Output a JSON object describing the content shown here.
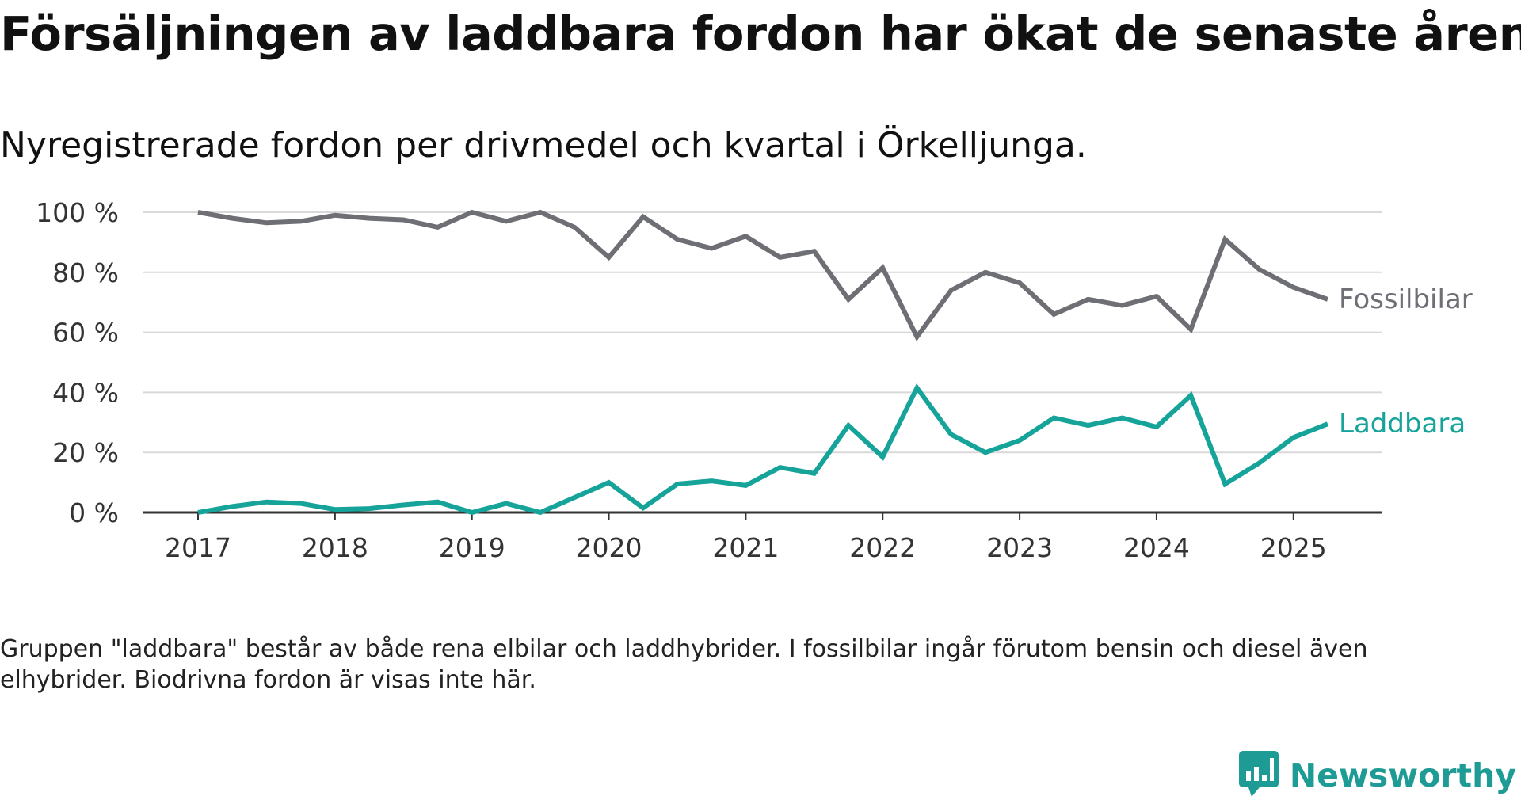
{
  "title": "Försäljningen av laddbara fordon har ökat de senaste åren",
  "subtitle": "Nyregistrerade fordon per drivmedel och kvartal i Örkelljunga.",
  "note": "Gruppen \"laddbara\" består av både rena elbilar och laddhybrider. I fossilbilar ingår förutom bensin och diesel även elhybrider. Biodrivna fordon är visas inte här.",
  "brand": {
    "name": "Newsworthy",
    "icon": "newsworthy-logo-icon",
    "color": "#1d9b94"
  },
  "chart_data": {
    "type": "line",
    "title": "Försäljningen av laddbara fordon har ökat de senaste åren",
    "subtitle": "Nyregistrerade fordon per drivmedel och kvartal i Örkelljunga.",
    "xlabel": "",
    "ylabel": "",
    "ylim": [
      0,
      100
    ],
    "y_ticks": [
      0,
      20,
      40,
      60,
      80,
      100
    ],
    "y_tick_labels": [
      "0 %",
      "20 %",
      "40 %",
      "60 %",
      "80 %",
      "100 %"
    ],
    "x_ticks": [
      2017,
      2018,
      2019,
      2020,
      2021,
      2022,
      2023,
      2024,
      2025
    ],
    "x_tick_labels": [
      "2017",
      "2018",
      "2019",
      "2020",
      "2021",
      "2022",
      "2023",
      "2024",
      "2025"
    ],
    "x": [
      "2017-Q1",
      "2017-Q2",
      "2017-Q3",
      "2017-Q4",
      "2018-Q1",
      "2018-Q2",
      "2018-Q3",
      "2018-Q4",
      "2019-Q1",
      "2019-Q2",
      "2019-Q3",
      "2019-Q4",
      "2020-Q1",
      "2020-Q2",
      "2020-Q3",
      "2020-Q4",
      "2021-Q1",
      "2021-Q2",
      "2021-Q3",
      "2021-Q4",
      "2022-Q1",
      "2022-Q2",
      "2022-Q3",
      "2022-Q4",
      "2023-Q1",
      "2023-Q2",
      "2023-Q3",
      "2023-Q4",
      "2024-Q1",
      "2024-Q2",
      "2024-Q3",
      "2024-Q4",
      "2025-Q1",
      "2025-Q2"
    ],
    "grid": true,
    "legend": "labels at line ends",
    "series": [
      {
        "name": "Fossilbilar",
        "color": "#6e6e75",
        "values": [
          100,
          98,
          96.5,
          97,
          99,
          98,
          97.5,
          95,
          100,
          97,
          100,
          95,
          85,
          98.5,
          91,
          88,
          92,
          85,
          87,
          71,
          81.5,
          58.5,
          74,
          80,
          76.5,
          66,
          71,
          69,
          72,
          61,
          91,
          81,
          75,
          71
        ]
      },
      {
        "name": "Laddbara",
        "color": "#16a39a",
        "values": [
          0,
          2,
          3.5,
          3,
          1,
          1.3,
          2.5,
          3.5,
          0,
          3,
          0,
          5,
          10,
          1.5,
          9.5,
          10.5,
          9,
          15,
          13,
          29,
          18.5,
          41.5,
          26,
          20,
          24,
          31.5,
          29,
          31.5,
          28.5,
          39,
          9.5,
          16.5,
          25,
          29.5
        ]
      }
    ]
  }
}
